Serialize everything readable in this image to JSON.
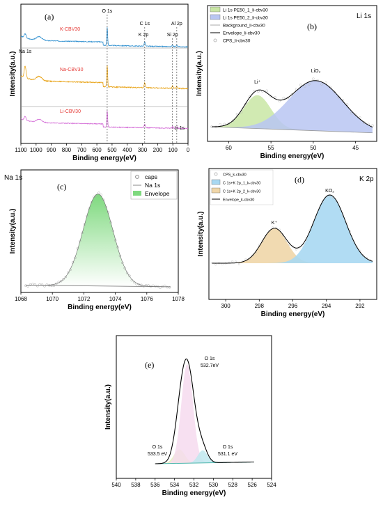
{
  "chart_data": [
    {
      "id": "a",
      "type": "line",
      "panel_label": "(a)",
      "xlabel": "Binding energy(eV)",
      "ylabel": "Intensity(a.u.)",
      "xlim": [
        1100,
        0
      ],
      "xticks": [
        "1100",
        "1000",
        "900",
        "800",
        "700",
        "600",
        "500",
        "400",
        "300",
        "200",
        "100",
        "0"
      ],
      "series": [
        {
          "name": "K-CBV30",
          "color": "#2e8fcf",
          "color_label": "#e53935"
        },
        {
          "name": "Na-CBV30",
          "color": "#e8a317",
          "color_label": "#e53935"
        },
        {
          "name": "Li-CBV30",
          "color": "#d36ad6",
          "color_label": "#e53935"
        }
      ],
      "annotations": [
        {
          "text": "O 1s",
          "x": 532
        },
        {
          "text": "C 1s",
          "x": 285
        },
        {
          "text": "K 2p",
          "x": 293
        },
        {
          "text": "Si 2p",
          "x": 102
        },
        {
          "text": "Al 2p",
          "x": 74
        },
        {
          "text": "Na 1s",
          "x": 1072
        },
        {
          "text": "Li 1s",
          "x": 56
        }
      ]
    },
    {
      "id": "b",
      "type": "area",
      "panel_label": "(b)",
      "corner_label": "Li 1s",
      "xlabel": "Binding energy(eV)",
      "ylabel": "Intensity(a.u.)",
      "xlim": [
        62.5,
        42.5
      ],
      "xticks": [
        "60",
        "55",
        "50",
        "45"
      ],
      "legend": [
        "Li 1s PE50_1_li-cbv30",
        "Li 1s PE50_2_li-cbv30",
        "Background_li-cbv30",
        "Envelope_li-cbv30",
        "CPS_li-cbv30"
      ],
      "peaks": [
        {
          "label": "Li⁺",
          "center": 56.6,
          "color": "#c9e6a5"
        },
        {
          "label": "LiO₂",
          "center": 49.7,
          "color": "#b9c6f2"
        }
      ]
    },
    {
      "id": "c",
      "type": "area",
      "panel_label": "(c)",
      "corner_label": "Na 1s",
      "xlabel": "Binding energy(eV)",
      "ylabel": "Intensity(a.u.)",
      "xlim": [
        1068,
        1078
      ],
      "xticks": [
        "1068",
        "1070",
        "1072",
        "1074",
        "1076",
        "1078"
      ],
      "legend": [
        "caps",
        "Na 1s",
        "Envelope"
      ],
      "peaks": [
        {
          "center": 1072.9,
          "color": "#7ed97e"
        }
      ]
    },
    {
      "id": "d",
      "type": "area",
      "panel_label": "(d)",
      "corner_label": "K 2p",
      "xlabel": "Binding energy(eV)",
      "ylabel": "Intensity(a.u.)",
      "xlim": [
        301,
        291
      ],
      "xticks": [
        "300",
        "298",
        "296",
        "294",
        "292"
      ],
      "legend": [
        "CPS_k-cbv30",
        "C 1s+K 2p_1_k-cbv30",
        "C 1s+K 2p_2_k-cbv30",
        "Envelope_k-cbv30"
      ],
      "peaks": [
        {
          "label": "K⁺",
          "center": 297.1,
          "color": "#f0d6a8"
        },
        {
          "label": "KO₂",
          "center": 293.8,
          "color": "#a8d8f2"
        }
      ]
    },
    {
      "id": "e",
      "type": "area",
      "panel_label": "(e)",
      "xlabel": "Binding energy(eV)",
      "ylabel": "Intensity(a.u.)",
      "xlim": [
        540,
        524
      ],
      "xticks": [
        "540",
        "538",
        "536",
        "534",
        "532",
        "530",
        "528",
        "526",
        "524"
      ],
      "peaks": [
        {
          "label_top": "O 1s",
          "label_bottom": "533.5 eV",
          "center": 533.5,
          "color": "#e3f2b8"
        },
        {
          "label_top": "O 1s",
          "label_bottom": "532.7eV",
          "center": 532.7,
          "color": "#f6dbef"
        },
        {
          "label_top": "O 1s",
          "label_bottom": "531.1 eV",
          "center": 531.1,
          "color": "#bfe8ef"
        }
      ]
    }
  ]
}
